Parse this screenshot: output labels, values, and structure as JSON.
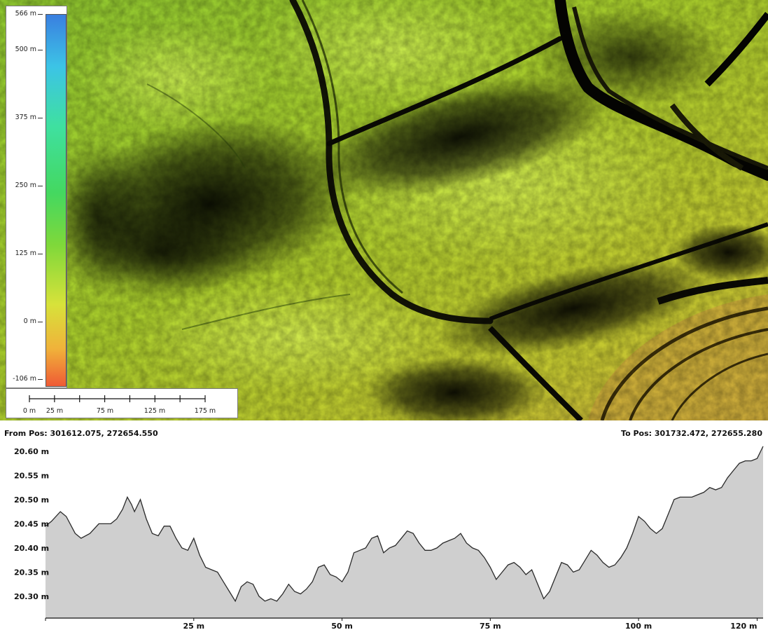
{
  "map": {
    "legend": {
      "title": "",
      "ticks": [
        "566 m",
        "500 m",
        "375 m",
        "250 m",
        "125 m",
        "0 m",
        "-106 m"
      ],
      "tick_values": [
        566,
        500,
        375,
        250,
        125,
        0,
        -106
      ]
    },
    "scale_bar": {
      "labels": [
        "0 m",
        "25 m",
        "75 m",
        "125 m",
        "175 m"
      ],
      "label_values": [
        0,
        25,
        75,
        125,
        175
      ],
      "tick_values": [
        0,
        25,
        50,
        75,
        100,
        125,
        150,
        175
      ]
    },
    "palette": {
      "low": "#ef5a35",
      "mid_low": "#d7e23a",
      "mid": "#44d860",
      "mid_high": "#3cc4e6",
      "high": "#3a7fe0"
    }
  },
  "profile": {
    "from_label": "From Pos: 301612.075, 272654.550",
    "to_label": "To Pos: 301732.472, 272655.280"
  },
  "chart_data": {
    "type": "area",
    "title": "",
    "xlabel": "",
    "ylabel": "",
    "x_tick_labels": [
      "25 m",
      "50 m",
      "75 m",
      "100 m",
      "120 m"
    ],
    "x_tick_values": [
      25,
      50,
      75,
      100,
      120
    ],
    "y_tick_labels": [
      "20.60 m",
      "20.55 m",
      "20.50 m",
      "20.45 m",
      "20.40 m",
      "20.35 m",
      "20.30 m"
    ],
    "y_tick_values": [
      20.6,
      20.55,
      20.5,
      20.45,
      20.4,
      20.35,
      20.3
    ],
    "xlim": [
      0,
      121
    ],
    "ylim": [
      20.255,
      20.62
    ],
    "grid": false,
    "fill_color": "#cfcfcf",
    "line_color": "#2a2a2a",
    "x": [
      0,
      1,
      2.5,
      3.5,
      5,
      6,
      7.5,
      9,
      11,
      12,
      13,
      13.8,
      14.5,
      15,
      16,
      17,
      18,
      19,
      20,
      21,
      22,
      23,
      24,
      25,
      26,
      27,
      28,
      29,
      30,
      31,
      32,
      33,
      34,
      35,
      36,
      37,
      38,
      39,
      40,
      41,
      42,
      43,
      44,
      45,
      46,
      47,
      48,
      49,
      50,
      51,
      52,
      53,
      54,
      55,
      56,
      57,
      58,
      59,
      60,
      61,
      62,
      63,
      64,
      65,
      66,
      67,
      68,
      69,
      70,
      71,
      72,
      73,
      74,
      75,
      76,
      77,
      78,
      79,
      80,
      81,
      82,
      83,
      84,
      85,
      86,
      87,
      88,
      89,
      90,
      91,
      92,
      93,
      94,
      95,
      96,
      97,
      98,
      99,
      100,
      101,
      102,
      103,
      104,
      105,
      106,
      107,
      108,
      109,
      110,
      111,
      112,
      113,
      114,
      115,
      116,
      117,
      118,
      119,
      120,
      121
    ],
    "y": [
      20.445,
      20.455,
      20.475,
      20.465,
      20.43,
      20.42,
      20.43,
      20.45,
      20.45,
      20.46,
      20.48,
      20.505,
      20.49,
      20.475,
      20.5,
      20.46,
      20.43,
      20.425,
      20.445,
      20.445,
      20.42,
      20.4,
      20.395,
      20.42,
      20.385,
      20.36,
      20.355,
      20.35,
      20.33,
      20.31,
      20.29,
      20.32,
      20.33,
      20.325,
      20.3,
      20.29,
      20.295,
      20.29,
      20.305,
      20.325,
      20.31,
      20.305,
      20.315,
      20.33,
      20.36,
      20.365,
      20.345,
      20.34,
      20.33,
      20.35,
      20.39,
      20.395,
      20.4,
      20.42,
      20.425,
      20.39,
      20.4,
      20.405,
      20.42,
      20.435,
      20.43,
      20.41,
      20.395,
      20.395,
      20.4,
      20.41,
      20.415,
      20.42,
      20.43,
      20.41,
      20.4,
      20.395,
      20.38,
      20.36,
      20.335,
      20.35,
      20.365,
      20.37,
      20.36,
      20.345,
      20.355,
      20.325,
      20.295,
      20.31,
      20.34,
      20.37,
      20.365,
      20.35,
      20.355,
      20.375,
      20.395,
      20.385,
      20.37,
      20.36,
      20.365,
      20.38,
      20.4,
      20.43,
      20.465,
      20.455,
      20.44,
      20.43,
      20.44,
      20.47,
      20.5,
      20.505,
      20.505,
      20.505,
      20.51,
      20.515,
      20.525,
      20.52,
      20.525,
      20.545,
      20.56,
      20.575,
      20.58,
      20.58,
      20.585,
      20.61
    ]
  }
}
